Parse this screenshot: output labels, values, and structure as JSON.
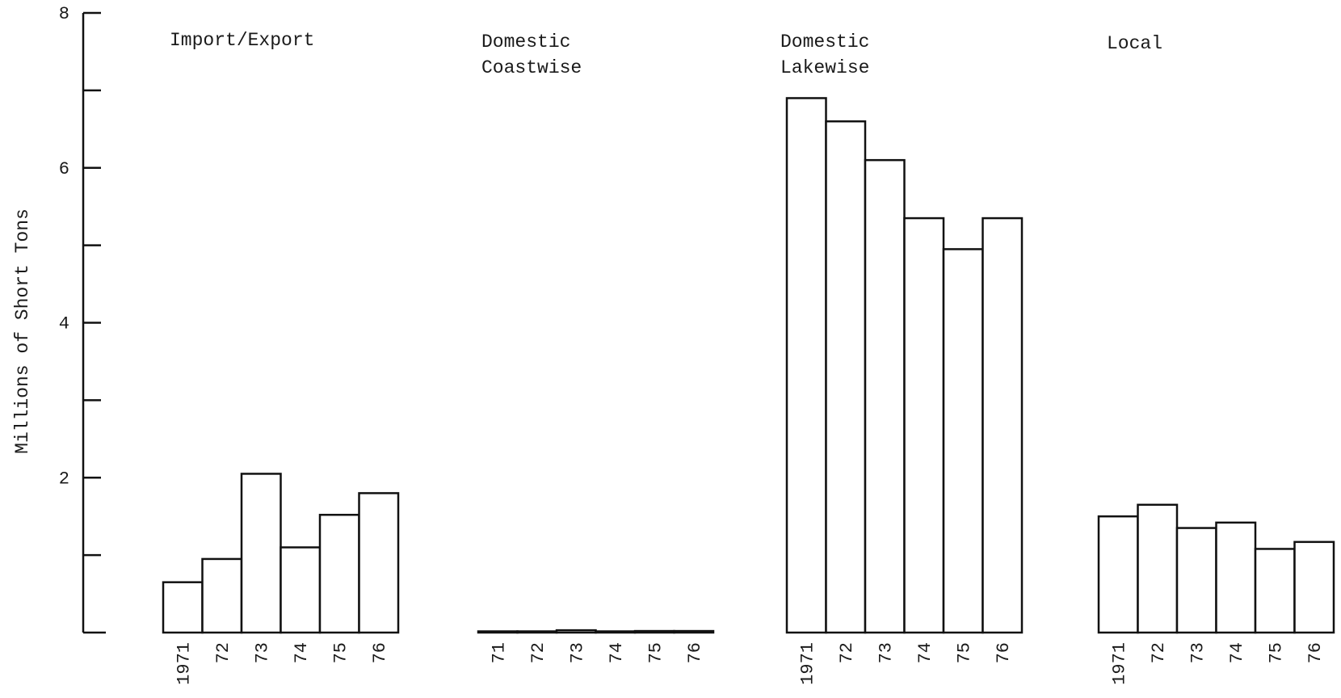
{
  "chart_data": {
    "type": "bar",
    "title": "",
    "xlabel": "",
    "ylabel": "Millions of Short Tons",
    "ylim": [
      0,
      8
    ],
    "yticks_labeled": [
      "2",
      "4",
      "6",
      "8"
    ],
    "ytick_values": [
      2,
      4,
      6,
      8
    ],
    "minor_ticks": [
      1,
      3,
      5,
      7
    ],
    "grid": false,
    "groups": [
      {
        "name": "Import/Export",
        "categories": [
          "1971",
          "72",
          "73",
          "74",
          "75",
          "76"
        ],
        "values": [
          0.65,
          0.95,
          2.05,
          1.1,
          1.52,
          1.8
        ]
      },
      {
        "name": "Domestic Coastwise",
        "categories": [
          "71",
          "72",
          "73",
          "74",
          "75",
          "76"
        ],
        "values": [
          0.0,
          0.0,
          0.03,
          0.0,
          0.02,
          0.02
        ]
      },
      {
        "name": "Domestic Lakewise",
        "categories": [
          "1971",
          "72",
          "73",
          "74",
          "75",
          "76"
        ],
        "values": [
          6.9,
          6.6,
          6.1,
          5.35,
          4.95,
          5.35
        ]
      },
      {
        "name": "Local",
        "categories": [
          "1971",
          "72",
          "73",
          "74",
          "75",
          "76"
        ],
        "values": [
          1.5,
          1.65,
          1.35,
          1.42,
          1.08,
          1.17
        ]
      }
    ]
  }
}
